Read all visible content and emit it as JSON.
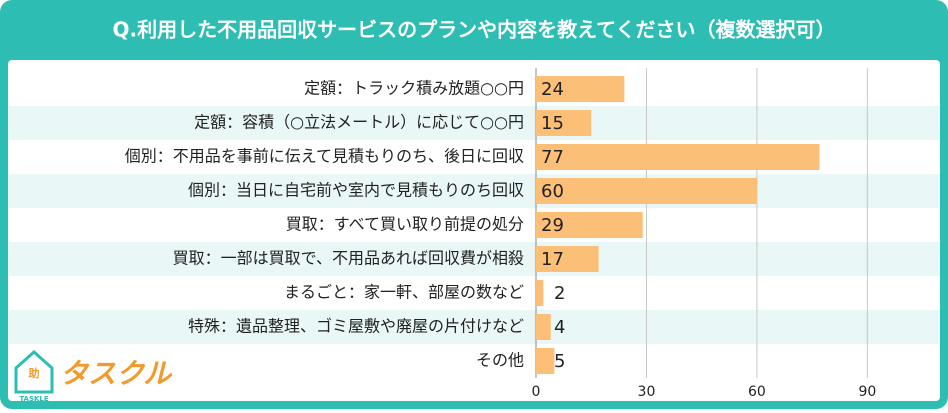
{
  "chart_data": {
    "type": "bar",
    "orientation": "horizontal",
    "title": "Q.利用した不用品回収サービスのプランや内容を教えてください（複数選択可）",
    "categories": [
      "定額：トラック積み放題○○円",
      "定額：容積（○立法メートル）に応じて○○円",
      "個別：不用品を事前に伝えて見積もりのち、後日に回収",
      "個別：当日に自宅前や室内で見積もりのち回収",
      "買取：すべて買い取り前提の処分",
      "買取：一部は買取で、不用品あれば回収費が相殺",
      "まるごと：家一軒、部屋の数など",
      "特殊：遺品整理、ゴミ屋敷や廃屋の片付けなど",
      "その他"
    ],
    "values": [
      24,
      15,
      77,
      60,
      29,
      17,
      2,
      4,
      5
    ],
    "color": "#fcbf78",
    "xlim": [
      0,
      110
    ],
    "xticks": [
      0,
      30,
      60,
      90
    ],
    "grid": true
  },
  "logo": {
    "icon": "助",
    "sub": "TASKLE",
    "text": "タスクル"
  }
}
